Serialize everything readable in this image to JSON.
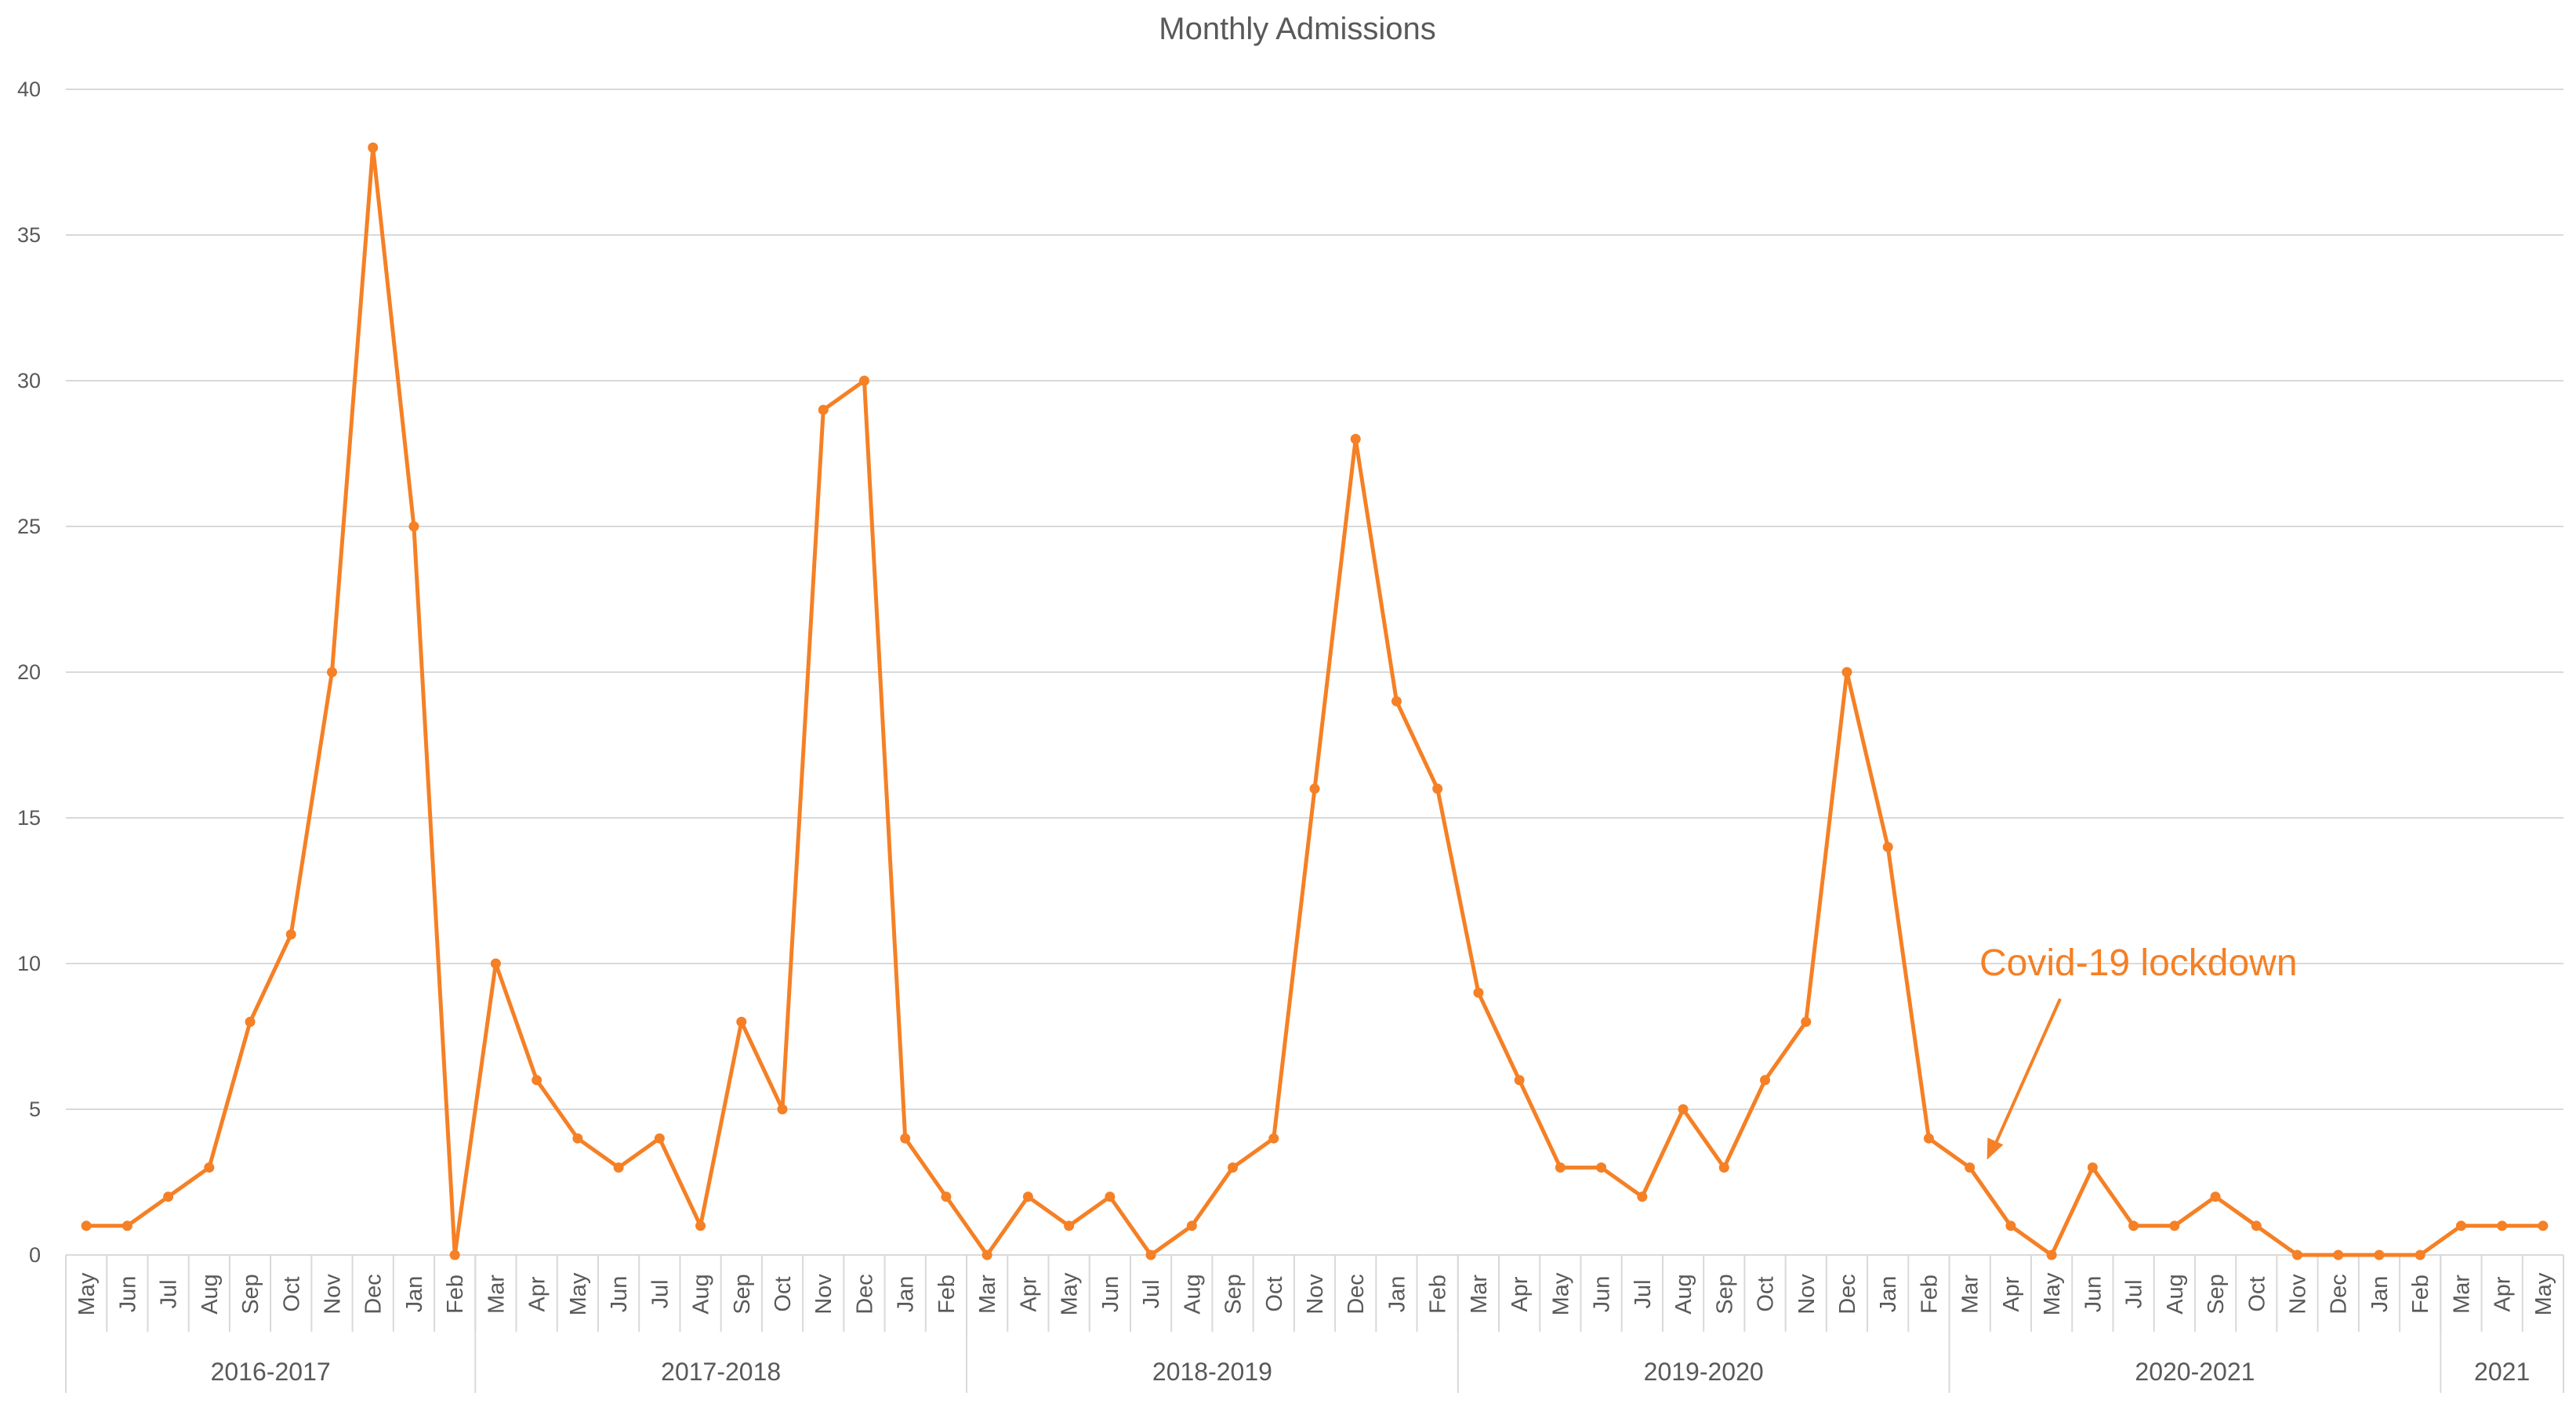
{
  "colors": {
    "series": "#f58025",
    "text": "#595959",
    "grid": "#d9d9d9"
  },
  "chart_data": {
    "type": "line",
    "title": "Monthly Admissions",
    "xlabel": "",
    "ylabel": "",
    "ylim": [
      0,
      40
    ],
    "yticks": [
      0,
      5,
      10,
      15,
      20,
      25,
      30,
      35,
      40
    ],
    "grid": true,
    "legend": "none",
    "categories": [
      "May",
      "Jun",
      "Jul",
      "Aug",
      "Sep",
      "Oct",
      "Nov",
      "Dec",
      "Jan",
      "Feb",
      "Mar",
      "Apr",
      "May",
      "Jun",
      "Jul",
      "Aug",
      "Sep",
      "Oct",
      "Nov",
      "Dec",
      "Jan",
      "Feb",
      "Mar",
      "Apr",
      "May",
      "Jun",
      "Jul",
      "Aug",
      "Sep",
      "Oct",
      "Nov",
      "Dec",
      "Jan",
      "Feb",
      "Mar",
      "Apr",
      "May",
      "Jun",
      "Jul",
      "Aug",
      "Sep",
      "Oct",
      "Nov",
      "Dec",
      "Jan",
      "Feb",
      "Mar",
      "Apr",
      "May",
      "Jun",
      "Jul",
      "Aug",
      "Sep",
      "Oct",
      "Nov",
      "Dec",
      "Jan",
      "Feb",
      "Mar",
      "Apr",
      "May"
    ],
    "groups": [
      {
        "label": "2016-2017",
        "count": 10
      },
      {
        "label": "2017-2018",
        "count": 12
      },
      {
        "label": "2018-2019",
        "count": 12
      },
      {
        "label": "2019-2020",
        "count": 12
      },
      {
        "label": "2020-2021",
        "count": 12
      },
      {
        "label": "2021",
        "count": 3
      }
    ],
    "series": [
      {
        "values": [
          1,
          1,
          2,
          3,
          8,
          11,
          20,
          38,
          25,
          0,
          10,
          6,
          4,
          3,
          4,
          1,
          8,
          5,
          29,
          30,
          4,
          2,
          0,
          2,
          1,
          2,
          0,
          1,
          3,
          4,
          16,
          28,
          19,
          16,
          9,
          6,
          3,
          3,
          2,
          5,
          3,
          6,
          8,
          20,
          14,
          4,
          3,
          1,
          0,
          3,
          1,
          1,
          2,
          1,
          0,
          0,
          0,
          0,
          1,
          1,
          1
        ]
      }
    ],
    "annotations": [
      {
        "text": "Covid-19 lockdown",
        "target_index": 46
      }
    ]
  }
}
